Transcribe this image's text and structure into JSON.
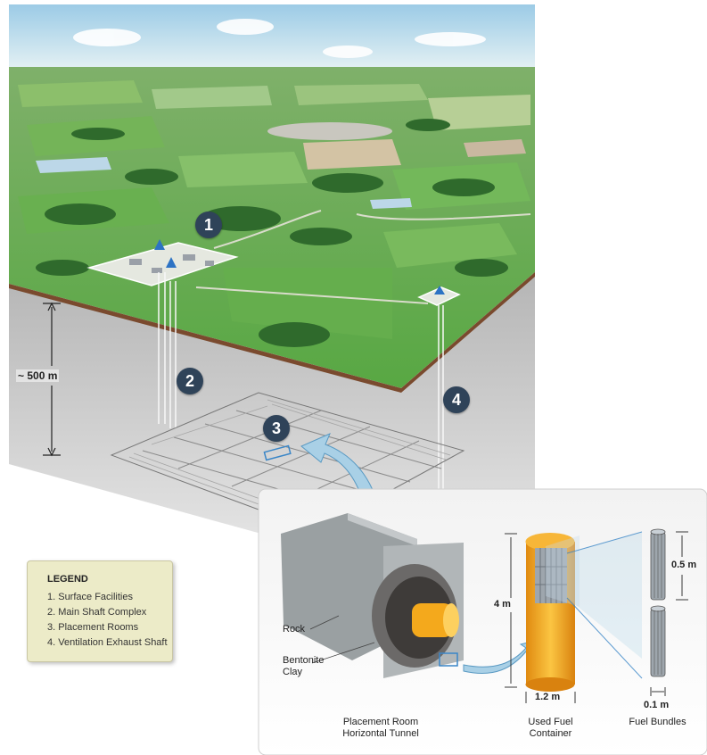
{
  "markers": [
    "1",
    "2",
    "3",
    "4"
  ],
  "depth_label": "~ 500 m",
  "legend": {
    "title": "LEGEND",
    "items": [
      "1.  Surface Facilities",
      "2.  Main Shaft Complex",
      "3.  Placement Rooms",
      "4.  Ventilation Exhaust Shaft"
    ]
  },
  "inset": {
    "rock_label": "Rock",
    "clay_label": "Bentonite Clay",
    "room_caption": "Placement Room Horizontal Tunnel",
    "container_caption": "Used Fuel Container",
    "bundles_caption": "Fuel Bundles",
    "container_height": "4 m",
    "container_width": "1.2 m",
    "bundle_height": "0.5 m",
    "bundle_width": "0.1 m"
  },
  "colors": {
    "sky": "#cfe7f2",
    "field_green": "#5fae4a",
    "forest": "#2f6a2c",
    "ground_edge": "#7a4a2e",
    "rock_grey": "#b8b8b8",
    "marker": "#2f4359",
    "shaft_blue": "#2d73c4",
    "container_orange": "#f3a51f",
    "legend_bg": "#ecebc8",
    "arrow_blue": "#a9d0e6"
  }
}
